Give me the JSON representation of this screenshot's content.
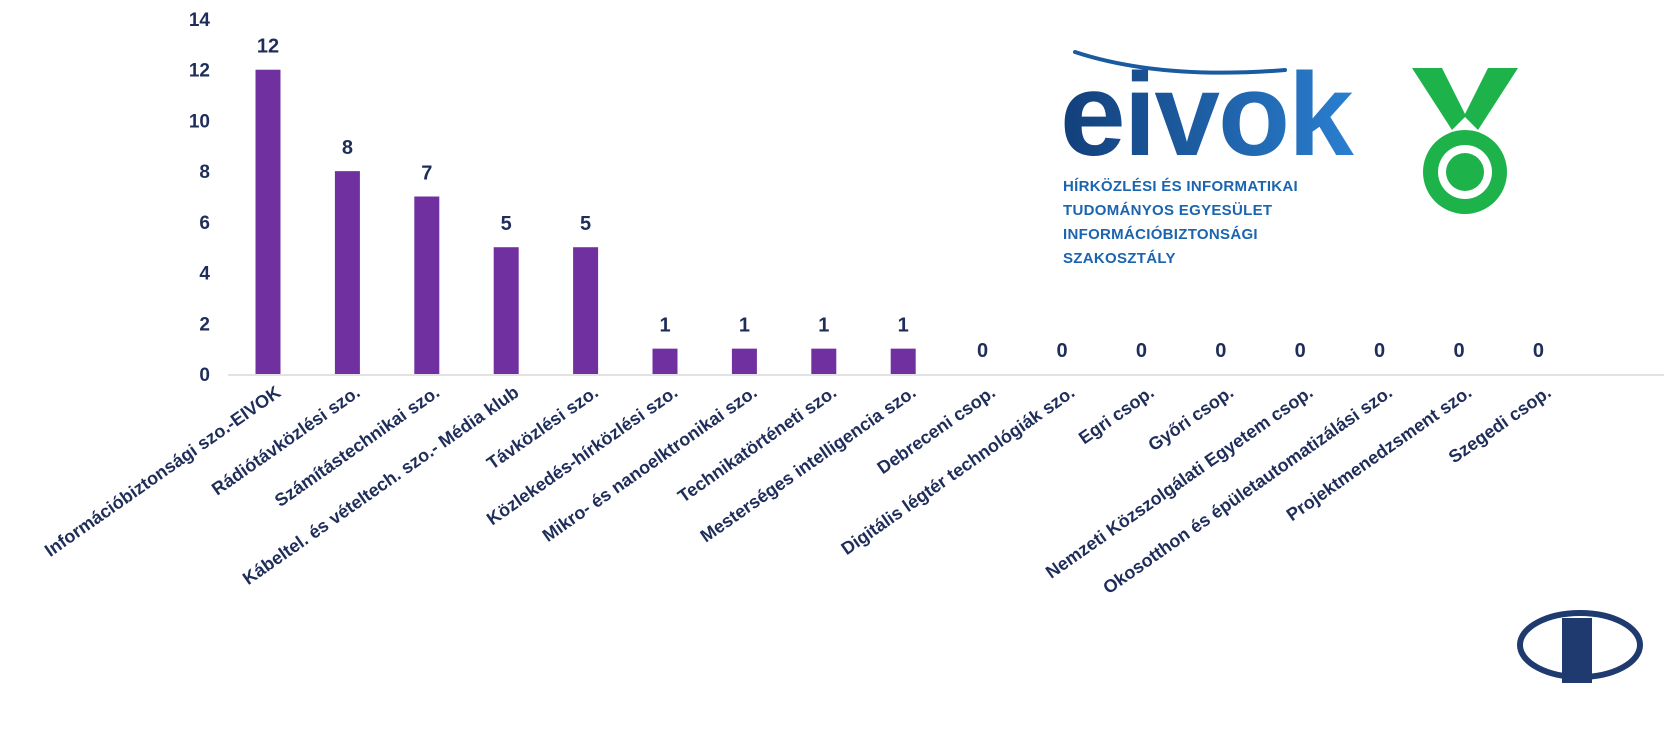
{
  "chart_data": {
    "type": "bar",
    "categories": [
      "Információbiztonsági szo.-EIVOK",
      "Rádiótávközlési szo.",
      "Számítástechnikai szo.",
      "Kábeltel. és vételtech. szo.- Média klub",
      "Távközlési szo.",
      "Közlekedés-hírközlési szo.",
      "Mikro- és nanoelktronikai szo.",
      "Technikatörténeti szo.",
      "Mesterséges intelligencia szo.",
      "Debreceni csop.",
      "Digitális légtér technológiák szo.",
      "Egri csop.",
      "Győri csop.",
      "Nemzeti Közszolgálati Egyetem csop.",
      "Okosotthon és épületautomatizálási szo.",
      "Projektmenedzsment szo.",
      "Szegedi csop."
    ],
    "values": [
      12,
      8,
      7,
      5,
      5,
      1,
      1,
      1,
      1,
      0,
      0,
      0,
      0,
      0,
      0,
      0,
      0
    ],
    "y_ticks": [
      "0",
      "2",
      "4",
      "6",
      "8",
      "10",
      "12",
      "14"
    ],
    "ylim": [
      0,
      14
    ],
    "bar_color": "#7030a0",
    "label_color": "#1f2d5a",
    "grid": false,
    "data_labels": true
  },
  "logo": {
    "wordmark": "eivok",
    "org_lines": [
      "HÍRKÖZLÉSI ÉS INFORMATIKAI",
      "TUDOMÁNYOS EGYESÜLET",
      "INFORMÁCIÓBIZTONSÁGI",
      "SZAKOSZTÁLY"
    ],
    "wordmark_color_dark": "#123f7a",
    "wordmark_color_light": "#2a7fd0",
    "medal_color": "#1db24a",
    "medal_icon": "medal-icon"
  },
  "corner_logo": {
    "icon": "partial-logo-icon",
    "color": "#1f3a6e"
  }
}
